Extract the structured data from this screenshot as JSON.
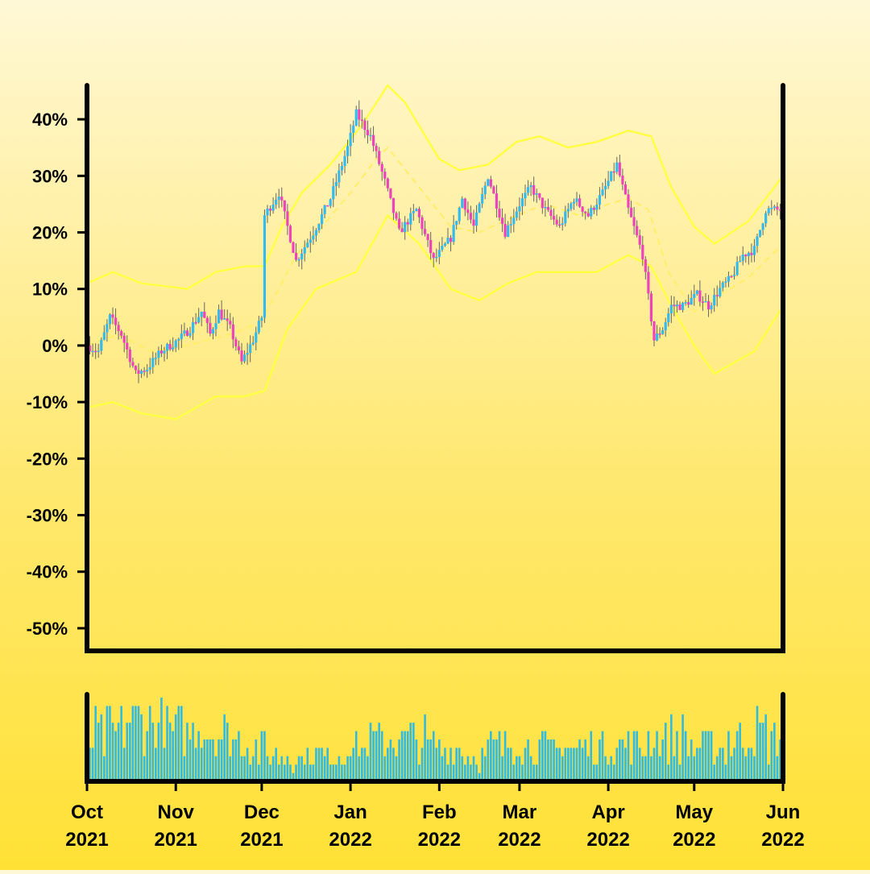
{
  "chart_data": [
    {
      "type": "candlestick",
      "title": "",
      "ylabel": "",
      "y_unit": "%",
      "ylim": [
        -54,
        46
      ],
      "y_ticks": [
        40,
        30,
        20,
        10,
        0,
        -10,
        -20,
        -30,
        -40,
        -50
      ],
      "y_tick_labels": [
        "40%",
        "30%",
        "20%",
        "10%",
        "0%",
        "-10%",
        "-20%",
        "-30%",
        "-40%",
        "-50%"
      ],
      "x_range": [
        "2021-10-01",
        "2022-06-01"
      ],
      "x_ticks": [
        {
          "date": "2021-10-01",
          "month": "Oct",
          "year": "2021"
        },
        {
          "date": "2021-11-01",
          "month": "Nov",
          "year": "2021"
        },
        {
          "date": "2021-12-01",
          "month": "Dec",
          "year": "2021"
        },
        {
          "date": "2022-01-01",
          "month": "Jan",
          "year": "2022"
        },
        {
          "date": "2022-02-01",
          "month": "Feb",
          "year": "2022"
        },
        {
          "date": "2022-03-01",
          "month": "Mar",
          "year": "2022"
        },
        {
          "date": "2022-04-01",
          "month": "Apr",
          "year": "2022"
        },
        {
          "date": "2022-05-01",
          "month": "May",
          "year": "2022"
        },
        {
          "date": "2022-06-01",
          "month": "Jun",
          "year": "2022"
        }
      ],
      "close_path": [
        [
          "2021-10-01",
          0
        ],
        [
          "2021-10-05",
          -1
        ],
        [
          "2021-10-09",
          5
        ],
        [
          "2021-10-13",
          2
        ],
        [
          "2021-10-18",
          -5
        ],
        [
          "2021-10-22",
          -4
        ],
        [
          "2021-10-27",
          -1
        ],
        [
          "2021-11-02",
          1
        ],
        [
          "2021-11-06",
          3
        ],
        [
          "2021-11-10",
          6
        ],
        [
          "2021-11-13",
          2
        ],
        [
          "2021-11-16",
          6
        ],
        [
          "2021-11-20",
          3
        ],
        [
          "2021-11-24",
          -3
        ],
        [
          "2021-11-28",
          1
        ],
        [
          "2021-12-01",
          5
        ],
        [
          "2021-12-02",
          23
        ],
        [
          "2021-12-07",
          27
        ],
        [
          "2021-12-13",
          15
        ],
        [
          "2021-12-19",
          20
        ],
        [
          "2021-12-25",
          26
        ],
        [
          "2021-12-31",
          35
        ],
        [
          "2022-01-03",
          41
        ],
        [
          "2022-01-08",
          37
        ],
        [
          "2022-01-13",
          29
        ],
        [
          "2022-01-18",
          20
        ],
        [
          "2022-01-24",
          24
        ],
        [
          "2022-01-30",
          15
        ],
        [
          "2022-02-05",
          19
        ],
        [
          "2022-02-09",
          26
        ],
        [
          "2022-02-13",
          21
        ],
        [
          "2022-02-18",
          30
        ],
        [
          "2022-02-24",
          20
        ],
        [
          "2022-03-01",
          25
        ],
        [
          "2022-03-05",
          28
        ],
        [
          "2022-03-10",
          24
        ],
        [
          "2022-03-15",
          21
        ],
        [
          "2022-03-20",
          26
        ],
        [
          "2022-03-25",
          23
        ],
        [
          "2022-03-30",
          27
        ],
        [
          "2022-04-04",
          32
        ],
        [
          "2022-04-08",
          24
        ],
        [
          "2022-04-13",
          16
        ],
        [
          "2022-04-17",
          1
        ],
        [
          "2022-04-20",
          3
        ],
        [
          "2022-04-23",
          7
        ],
        [
          "2022-04-27",
          7
        ],
        [
          "2022-05-02",
          9
        ],
        [
          "2022-05-06",
          7
        ],
        [
          "2022-05-10",
          10
        ],
        [
          "2022-05-14",
          12
        ],
        [
          "2022-05-18",
          16
        ],
        [
          "2022-05-22",
          17
        ],
        [
          "2022-05-26",
          24
        ],
        [
          "2022-06-01",
          24
        ]
      ],
      "moving_average": [
        [
          "2021-10-01",
          0
        ],
        [
          "2021-10-12",
          2
        ],
        [
          "2021-10-23",
          -1
        ],
        [
          "2021-11-05",
          0
        ],
        [
          "2021-11-20",
          2
        ],
        [
          "2021-11-30",
          4
        ],
        [
          "2021-12-06",
          9
        ],
        [
          "2021-12-13",
          16
        ],
        [
          "2021-12-22",
          21
        ],
        [
          "2022-01-01",
          27
        ],
        [
          "2022-01-10",
          33
        ],
        [
          "2022-01-14",
          35
        ],
        [
          "2022-01-25",
          28
        ],
        [
          "2022-02-05",
          21
        ],
        [
          "2022-02-15",
          20
        ],
        [
          "2022-02-28",
          23
        ],
        [
          "2022-03-10",
          25
        ],
        [
          "2022-03-22",
          23
        ],
        [
          "2022-04-01",
          25
        ],
        [
          "2022-04-08",
          26
        ],
        [
          "2022-04-15",
          24
        ],
        [
          "2022-04-22",
          13
        ],
        [
          "2022-05-01",
          6
        ],
        [
          "2022-05-10",
          9
        ],
        [
          "2022-05-20",
          12
        ],
        [
          "2022-06-01",
          18
        ]
      ],
      "upper_band": [
        [
          "2021-10-01",
          11
        ],
        [
          "2021-10-10",
          13
        ],
        [
          "2021-10-20",
          11
        ],
        [
          "2021-11-05",
          10
        ],
        [
          "2021-11-15",
          13
        ],
        [
          "2021-11-25",
          14
        ],
        [
          "2021-12-02",
          14
        ],
        [
          "2021-12-08",
          21
        ],
        [
          "2021-12-15",
          27
        ],
        [
          "2021-12-25",
          32
        ],
        [
          "2022-01-05",
          39
        ],
        [
          "2022-01-14",
          46
        ],
        [
          "2022-01-20",
          43
        ],
        [
          "2022-02-01",
          33
        ],
        [
          "2022-02-08",
          31
        ],
        [
          "2022-02-18",
          32
        ],
        [
          "2022-02-28",
          36
        ],
        [
          "2022-03-08",
          37
        ],
        [
          "2022-03-18",
          35
        ],
        [
          "2022-03-28",
          36
        ],
        [
          "2022-04-08",
          38
        ],
        [
          "2022-04-16",
          37
        ],
        [
          "2022-04-23",
          28
        ],
        [
          "2022-05-01",
          21
        ],
        [
          "2022-05-08",
          18
        ],
        [
          "2022-05-20",
          22
        ],
        [
          "2022-06-01",
          30
        ]
      ],
      "lower_band": [
        [
          "2021-10-01",
          -11
        ],
        [
          "2021-10-10",
          -10
        ],
        [
          "2021-10-20",
          -12
        ],
        [
          "2021-11-01",
          -13
        ],
        [
          "2021-11-15",
          -9
        ],
        [
          "2021-11-25",
          -9
        ],
        [
          "2021-12-02",
          -8
        ],
        [
          "2021-12-10",
          3
        ],
        [
          "2021-12-20",
          10
        ],
        [
          "2022-01-03",
          13
        ],
        [
          "2022-01-14",
          23
        ],
        [
          "2022-01-25",
          18
        ],
        [
          "2022-02-05",
          10
        ],
        [
          "2022-02-15",
          8
        ],
        [
          "2022-02-25",
          11
        ],
        [
          "2022-03-07",
          13
        ],
        [
          "2022-03-18",
          13
        ],
        [
          "2022-03-28",
          13
        ],
        [
          "2022-04-08",
          16
        ],
        [
          "2022-04-16",
          14
        ],
        [
          "2022-04-23",
          7
        ],
        [
          "2022-05-01",
          0
        ],
        [
          "2022-05-08",
          -5
        ],
        [
          "2022-05-15",
          -3
        ],
        [
          "2022-05-22",
          -1
        ],
        [
          "2022-06-01",
          7
        ]
      ],
      "colors": {
        "up": "#33bbee",
        "down": "#ee44bb",
        "wick": "#666666",
        "bands": "#ffff44",
        "moving_average": "#ffee66",
        "axes": "#000000"
      },
      "grid": false,
      "legend": "none"
    },
    {
      "type": "bar",
      "title": "",
      "ylabel": "",
      "x_range": [
        "2021-10-01",
        "2022-06-01"
      ],
      "volume_levels": [
        4,
        5,
        6,
        7,
        8,
        9
      ],
      "volume_level_weeks": [
        [
          5,
          5
        ],
        [
          6,
          4
        ],
        [
          7,
          5
        ],
        [
          7,
          4
        ],
        [
          6,
          4
        ],
        [
          6,
          3
        ],
        [
          6,
          4
        ],
        [
          5,
          3
        ],
        [
          4,
          3
        ],
        [
          3,
          2
        ],
        [
          3,
          2
        ],
        [
          3,
          2
        ],
        [
          3,
          2
        ],
        [
          4,
          2
        ],
        [
          5,
          3
        ],
        [
          5,
          3
        ],
        [
          5,
          4
        ],
        [
          4,
          3
        ],
        [
          4,
          3
        ],
        [
          3,
          2
        ],
        [
          4,
          3
        ],
        [
          4,
          2
        ],
        [
          4,
          3
        ],
        [
          4,
          2
        ],
        [
          4,
          3
        ],
        [
          4,
          3
        ],
        [
          4,
          3
        ],
        [
          4,
          3
        ],
        [
          5,
          3
        ],
        [
          5,
          4
        ],
        [
          4,
          3
        ],
        [
          4,
          3
        ],
        [
          5,
          4
        ],
        [
          6,
          4
        ],
        [
          5,
          4
        ]
      ],
      "color": "#33bbdd",
      "grid": false
    }
  ]
}
